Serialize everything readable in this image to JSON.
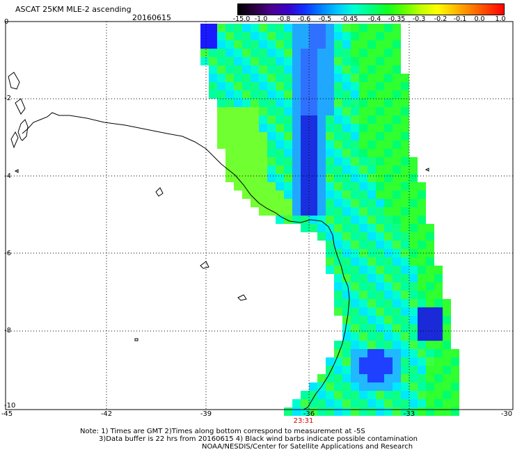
{
  "header": {
    "title": "ASCAT 25KM MLE-2 ascending",
    "date": "20160615"
  },
  "colorbar": {
    "labels": [
      "-15.0",
      "-1.0",
      "-0.8",
      "-0.6",
      "-0.5",
      "-0.45",
      "-0.4",
      "-0.35",
      "-0.3",
      "-0.2",
      "-0.1",
      "0.0",
      "1.0"
    ],
    "colors": [
      "#000000",
      "#2a0040",
      "#4b0090",
      "#3a00c8",
      "#1030ff",
      "#0080ff",
      "#00c8ff",
      "#00ffd0",
      "#00ff80",
      "#10ff20",
      "#60ff00",
      "#c0ff00",
      "#ffff00",
      "#ffc000",
      "#ff8000",
      "#ff4000",
      "#ff0000"
    ]
  },
  "map": {
    "x_ticks": [
      "-45",
      "-42",
      "-39",
      "-36",
      "-33",
      "-30"
    ],
    "y_ticks": [
      "0",
      "-2",
      "-4",
      "-6",
      "-8",
      "-10"
    ],
    "pass_time": "23:31"
  },
  "notes": [
    "Note: 1) Times are GMT 2)Times along bottom correspond to measurement at -5S",
    "3)Data buffer is 22 hrs from 20160615 4) Black wind barbs indicate possible contamination",
    "NOAA/NESDIS/Center for Satellite Applications and Research"
  ]
}
